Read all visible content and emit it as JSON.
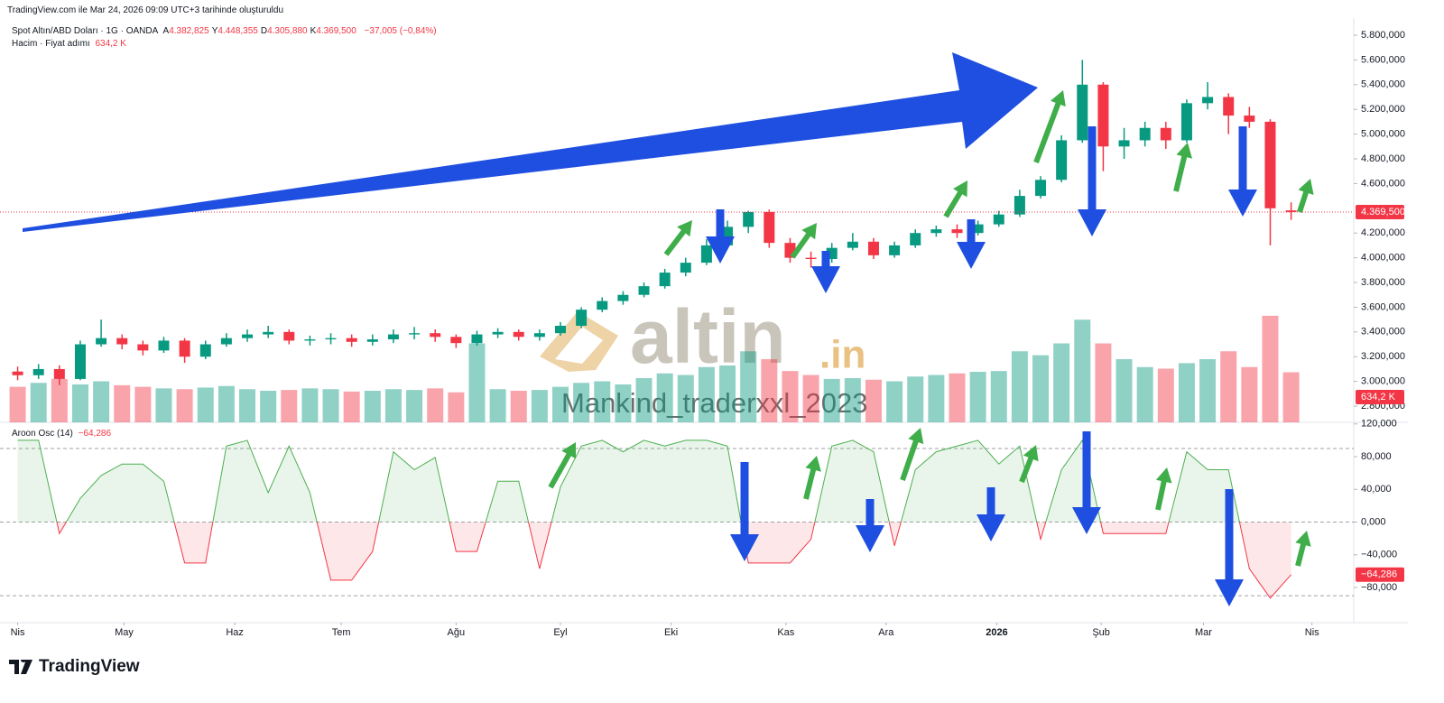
{
  "header": {
    "caption": "TradingView.com ile Mar 24, 2026 09:09 UTC+3 tarihinde oluşturuldu"
  },
  "chart_data": [
    {
      "type": "candlestick",
      "title": "Spot Altın/ABD Doları · 1G · OANDA",
      "ohlc_legend": [
        {
          "label": "A",
          "value": "4.382,825"
        },
        {
          "label": "Y",
          "value": "4.448,355"
        },
        {
          "label": "D",
          "value": "4.305,880"
        },
        {
          "label": "K",
          "value": "4.369,500"
        }
      ],
      "change": "−37,005 (−0,84%)",
      "open": [
        3080,
        3050,
        3100,
        3020,
        3300,
        3350,
        3300,
        3250,
        3330,
        3200,
        3300,
        3350,
        3380,
        3400,
        3330,
        3340,
        3350,
        3320,
        3340,
        3380,
        3390,
        3360,
        3310,
        3380,
        3400,
        3360,
        3390,
        3450,
        3580,
        3650,
        3700,
        3770,
        3880,
        3960,
        4100,
        4250,
        4370,
        4120,
        4000,
        3990,
        4080,
        4130,
        4020,
        4100,
        4200,
        4230,
        4200,
        4270,
        4350,
        4500,
        4630,
        4950,
        5400,
        4900,
        4950,
        5050,
        4950,
        5250,
        5300,
        5150,
        5100,
        4382.825
      ],
      "high": [
        3120,
        3140,
        3130,
        3330,
        3500,
        3380,
        3330,
        3360,
        3350,
        3330,
        3390,
        3420,
        3450,
        3420,
        3370,
        3390,
        3380,
        3380,
        3420,
        3440,
        3420,
        3380,
        3410,
        3430,
        3420,
        3420,
        3480,
        3600,
        3680,
        3730,
        3800,
        3910,
        4000,
        4150,
        4300,
        4380,
        4390,
        4160,
        4050,
        4120,
        4200,
        4160,
        4130,
        4230,
        4260,
        4270,
        4300,
        4380,
        4550,
        4660,
        4990,
        5600,
        5420,
        5050,
        5100,
        5100,
        5280,
        5420,
        5330,
        5220,
        5120,
        4448.355
      ],
      "low": [
        3010,
        3020,
        2970,
        3010,
        3280,
        3260,
        3210,
        3230,
        3150,
        3180,
        3280,
        3320,
        3350,
        3300,
        3290,
        3300,
        3280,
        3290,
        3310,
        3340,
        3320,
        3270,
        3290,
        3350,
        3330,
        3330,
        3370,
        3430,
        3560,
        3620,
        3680,
        3750,
        3850,
        3940,
        4080,
        4200,
        4080,
        3960,
        3920,
        3960,
        4060,
        3990,
        4000,
        4080,
        4170,
        4160,
        4180,
        4250,
        4330,
        4480,
        4610,
        4930,
        4700,
        4800,
        4900,
        4880,
        4930,
        5200,
        5000,
        5050,
        4100,
        4305.88
      ],
      "close": [
        3050,
        3100,
        3020,
        3300,
        3350,
        3300,
        3250,
        3330,
        3200,
        3300,
        3350,
        3380,
        3400,
        3330,
        3340,
        3350,
        3320,
        3340,
        3380,
        3390,
        3360,
        3310,
        3380,
        3400,
        3360,
        3390,
        3450,
        3580,
        3650,
        3700,
        3770,
        3880,
        3960,
        4100,
        4250,
        4370,
        4120,
        4000,
        3990,
        4080,
        4130,
        4020,
        4100,
        4200,
        4230,
        4200,
        4270,
        4350,
        4500,
        4630,
        4950,
        5400,
        4900,
        4950,
        5050,
        4950,
        5250,
        5300,
        5150,
        5100,
        4400,
        4369.5
      ],
      "up_color": "#089981",
      "down_color": "#f23645",
      "xlim": [
        -0.5,
        64
      ],
      "ylim": [
        2669,
        5902
      ],
      "yticks": [
        {
          "value": 5800,
          "label": "5.800,000"
        },
        {
          "value": 5600,
          "label": "5.600,000"
        },
        {
          "value": 5400,
          "label": "5.400,000"
        },
        {
          "value": 5200,
          "label": "5.200,000"
        },
        {
          "value": 5000,
          "label": "5.000,000"
        },
        {
          "value": 4800,
          "label": "4.800,000"
        },
        {
          "value": 4600,
          "label": "4.600,000"
        },
        {
          "value": 4200,
          "label": "4.200,000"
        },
        {
          "value": 4000,
          "label": "4.000,000"
        },
        {
          "value": 3800,
          "label": "3.800,000"
        },
        {
          "value": 3600,
          "label": "3.600,000"
        },
        {
          "value": 3400,
          "label": "3.400,000"
        },
        {
          "value": 3200,
          "label": "3.200,000"
        },
        {
          "value": 3000,
          "label": "3.000,000"
        },
        {
          "value": 2800,
          "label": "2.800,000"
        }
      ],
      "price_tag": {
        "value": 4369.5,
        "label": "4.369,500"
      },
      "volume": {
        "name": "Hacim · Fiyat adımı",
        "values": [
          450,
          500,
          550,
          480,
          520,
          470,
          450,
          430,
          420,
          440,
          460,
          420,
          400,
          410,
          430,
          420,
          390,
          400,
          420,
          410,
          430,
          380,
          1000,
          420,
          400,
          410,
          450,
          500,
          520,
          480,
          560,
          620,
          600,
          700,
          720,
          900,
          800,
          650,
          600,
          550,
          560,
          540,
          520,
          580,
          600,
          620,
          640,
          650,
          900,
          850,
          1000,
          1300,
          1000,
          800,
          700,
          680,
          750,
          800,
          900,
          700,
          1350,
          634.2
        ],
        "ylim": [
          0,
          1600
        ],
        "tag": {
          "value": 634.2,
          "label": "634,2 K"
        }
      },
      "watermark": {
        "logo": "altin",
        "logo_suffix": ".in",
        "text": "Mankind_traderxxl_2023"
      }
    },
    {
      "type": "area",
      "title": "Aroon Osc (14)",
      "values": [
        100,
        100,
        -14,
        29,
        57,
        71,
        71,
        50,
        -50,
        -50,
        93,
        100,
        36,
        93,
        36,
        -71,
        -71,
        -36,
        86,
        64,
        79,
        -36,
        -36,
        50,
        50,
        -57,
        43,
        93,
        100,
        86,
        100,
        93,
        100,
        100,
        93,
        -50,
        -50,
        -50,
        -21,
        93,
        100,
        86,
        -29,
        64,
        86,
        93,
        100,
        71,
        93,
        -21,
        64,
        100,
        -14,
        -14,
        -14,
        -14,
        86,
        64,
        64,
        -57,
        -93,
        -64.286
      ],
      "up_color": "#4caf50",
      "down_color": "#f23645",
      "xlim": [
        -0.5,
        64
      ],
      "ylim": [
        -123,
        122
      ],
      "yticks": [
        {
          "value": 120,
          "label": "120,000"
        },
        {
          "value": 80,
          "label": "80,000"
        },
        {
          "value": 40,
          "label": "40,000"
        },
        {
          "value": 0,
          "label": "0,000"
        },
        {
          "value": -40,
          "label": "−40,000"
        },
        {
          "value": -80,
          "label": "−80,000"
        }
      ],
      "levels": [
        90,
        0,
        -90
      ],
      "tag": {
        "value": -64.286,
        "label": "−64,286"
      },
      "xticks": [
        {
          "value": 0,
          "label": "Nis"
        },
        {
          "value": 5.1,
          "label": "May"
        },
        {
          "value": 10.4,
          "label": "Haz"
        },
        {
          "value": 15.5,
          "label": "Tem"
        },
        {
          "value": 21,
          "label": "Ağu"
        },
        {
          "value": 26,
          "label": "Eyl"
        },
        {
          "value": 31.3,
          "label": "Eki"
        },
        {
          "value": 36.8,
          "label": "Kas"
        },
        {
          "value": 41.6,
          "label": "Ara"
        },
        {
          "value": 46.9,
          "label": 2026
        },
        {
          "value": 51.9,
          "label": "Şub"
        },
        {
          "value": 56.8,
          "label": "Mar"
        },
        {
          "value": 62,
          "label": "Nis"
        }
      ]
    }
  ],
  "footer": {
    "brand": "TradingView"
  }
}
